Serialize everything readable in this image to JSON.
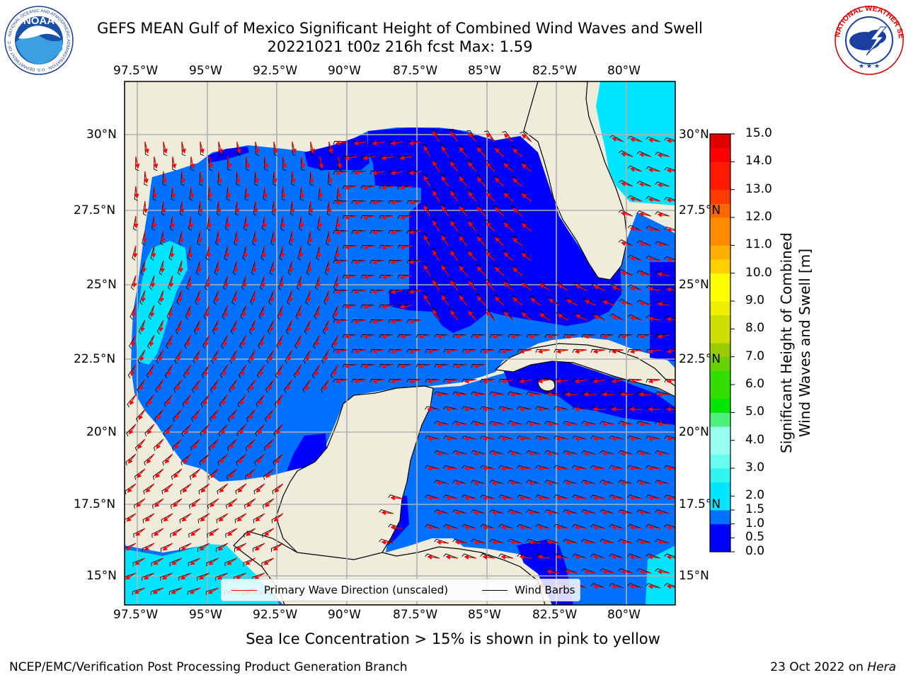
{
  "title_line1": "GEFS MEAN Gulf of Mexico Significant Height of Combined Wind Waves and Swell",
  "title_line2": "20221021 t00z 216h fcst   Max: 1.59",
  "axes": {
    "lon_ticks": [
      "97.5°W",
      "95°W",
      "92.5°W",
      "90°W",
      "87.5°W",
      "85°W",
      "82.5°W",
      "80°W"
    ],
    "lat_ticks": [
      "30°N",
      "27.5°N",
      "25°N",
      "22.5°N",
      "20°N",
      "17.5°N",
      "15°N"
    ],
    "lon_range": [
      -98,
      -78.3
    ],
    "lat_range": [
      14,
      31.6
    ]
  },
  "colorbar": {
    "label_line1": "Significant Height of Combined",
    "label_line2": "Wind Waves and Swell [m]",
    "ticks": [
      "0.0",
      "0.5",
      "1.0",
      "1.5",
      "2.0",
      "2.5",
      "3.0",
      "3.5",
      "4.0",
      "4.5",
      "5.0",
      "5.5",
      "6.0",
      "6.5",
      "7.0",
      "7.5",
      "8.0",
      "8.5",
      "9.0",
      "9.5",
      "10.0",
      "10.5",
      "11.0",
      "11.5",
      "12.0",
      "12.5",
      "13.0",
      "13.5",
      "14.0",
      "14.5",
      "15.0"
    ],
    "shown_ticks": [
      "0.0",
      "0.5",
      "1.0",
      "1.5",
      "2.0",
      "3.0",
      "4.0",
      "5.0",
      "6.0",
      "7.0",
      "8.0",
      "9.0",
      "10.0",
      "11.0",
      "12.0",
      "13.0",
      "14.0",
      "15.0"
    ],
    "colors": [
      "#0000ff",
      "#0070ff",
      "#00e5ff",
      "#33f5f0",
      "#66fff0",
      "#99fff0",
      "#4df07a",
      "#00e600",
      "#33dd00",
      "#66d400",
      "#99cc00",
      "#ccdd00",
      "#eeee00",
      "#ffff00",
      "#ffd000",
      "#ffb000",
      "#ff8c00",
      "#ff6600",
      "#ff3c00",
      "#ff1a00",
      "#ff0000",
      "#e00000"
    ]
  },
  "legend": {
    "wave_direction": "Primary Wave Direction (unscaled)",
    "wind_barbs": "Wind Barbs",
    "wave_color": "#ff0000",
    "barb_color": "#000000"
  },
  "sea_ice_note": "Sea Ice Concentration > 15% is shown in pink to yellow",
  "footer_left": "NCEP/EMC/Verification Post Processing Product Generation Branch",
  "footer_right_date": "23 Oct 2022 on ",
  "footer_right_machine": "Hera",
  "logos": {
    "noaa_text": "NOAA",
    "noaa_ring_text": "NATIONAL OCEANIC AND ATMOSPHERIC ADMINISTRATION · U.S. DEPARTMENT OF COMMERCE",
    "nws_ring_text": "NATIONAL WEATHER SERVICE"
  },
  "map_colors": {
    "land": "#efecdc",
    "water_0_0_5": "#0000ff",
    "water_0_5_1": "#0070ff",
    "water_1_1_5": "#00e5ff",
    "water_1_5_2": "#33f5f0"
  }
}
